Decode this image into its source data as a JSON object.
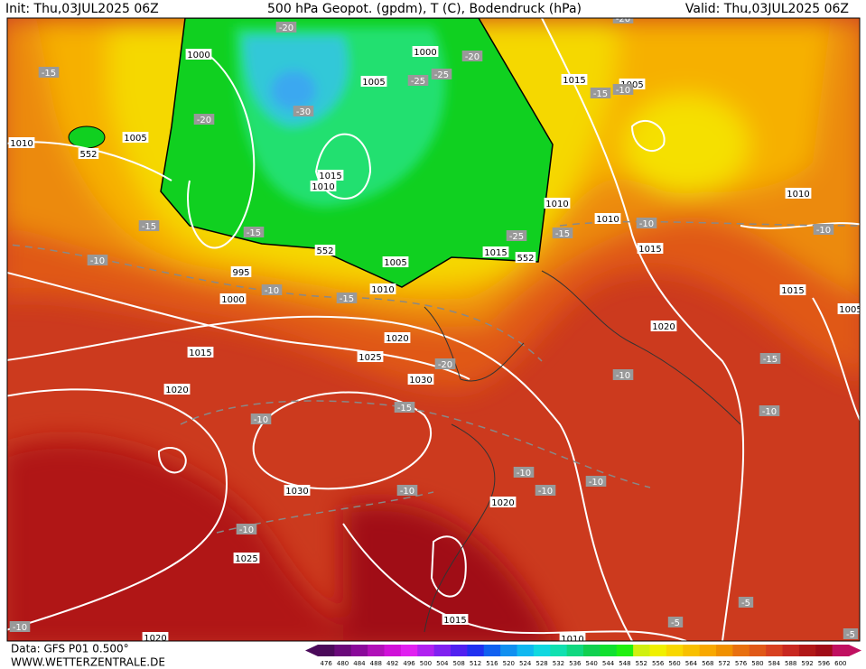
{
  "header": {
    "init": "Init: Thu,03JUL2025 06Z",
    "title": "500 hPa Geopot. (gpdm), T (C), Bodendruck (hPa)",
    "valid": "Valid: Thu,03JUL2025 06Z"
  },
  "footer": {
    "data": "Data: GFS P01 0.500°",
    "site": "WWW.WETTERZENTRALE.DE"
  },
  "map": {
    "isobar_labels": [
      "1000",
      "1005",
      "1010",
      "1005",
      "1000",
      "1015",
      "1010",
      "995",
      "1000",
      "1005",
      "1010",
      "1015",
      "1010",
      "1010",
      "1015",
      "1005",
      "1010",
      "1015",
      "1015",
      "1020",
      "1020",
      "1025",
      "1030",
      "1015",
      "1020",
      "1030",
      "1020",
      "1025",
      "1015",
      "1020",
      "1010",
      "1005"
    ],
    "temperature_labels": [
      "-15",
      "-20",
      "-20",
      "-30",
      "-25",
      "-25",
      "-20",
      "-15",
      "-15",
      "-10",
      "-10",
      "-15",
      "-25",
      "-15",
      "-10",
      "-10",
      "-15",
      "-10",
      "-20",
      "-20",
      "-15",
      "-10",
      "-10",
      "-15",
      "-10",
      "-10",
      "-10",
      "-10",
      "-10",
      "-10",
      "-10",
      "-5",
      "-5",
      "-5"
    ],
    "contour_labels": [
      "552",
      "552",
      "552"
    ]
  },
  "colorbar": {
    "levels": [
      476,
      480,
      484,
      488,
      492,
      496,
      500,
      504,
      508,
      512,
      516,
      520,
      524,
      528,
      532,
      536,
      540,
      544,
      548,
      552,
      556,
      560,
      564,
      568,
      572,
      576,
      580,
      584,
      588,
      592,
      596,
      600
    ],
    "colors": [
      "#4b0a5a",
      "#6a0a7a",
      "#8a0a9a",
      "#b010b8",
      "#d010d8",
      "#e020f0",
      "#b020f0",
      "#8020f0",
      "#5020f0",
      "#2030f0",
      "#1060f0",
      "#1090f0",
      "#10b8f0",
      "#10d8e0",
      "#10e0b0",
      "#10d880",
      "#10d050",
      "#10e030",
      "#20f010",
      "#d0f010",
      "#f0f000",
      "#f8d800",
      "#f8c000",
      "#f8a800",
      "#f09000",
      "#e87010",
      "#e05818",
      "#d84020",
      "#c82820",
      "#b01818",
      "#a00c18",
      "#c01060"
    ]
  }
}
